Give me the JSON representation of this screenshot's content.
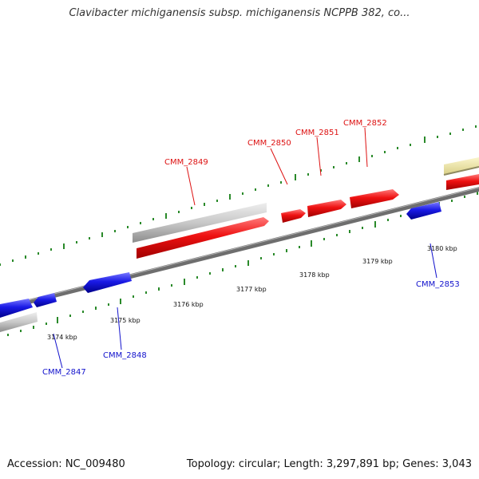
{
  "title": "Clavibacter michiganensis subsp. michiganensis NCPPB 382, co...",
  "footer": {
    "accession": "Accession: NC_009480",
    "summary": "Topology: circular; Length: 3,297,891 bp; Genes: 3,043"
  },
  "colors": {
    "forward_gene": "#ee1111",
    "reverse_gene": "#1a1ae6",
    "forward_rna_track": "#c8c8c8",
    "reverse_rna_track": "#c8c8c8",
    "other_feature": "#ece4a0",
    "backbone": "#808080",
    "ticks": "#2a8a2a",
    "forward_label": "#dd1111",
    "reverse_label": "#1111cc"
  },
  "scale_labels": [
    "3174 kbp",
    "3175 kbp",
    "3176 kbp",
    "3177 kbp",
    "3178 kbp",
    "3179 kbp",
    "3180 kbp"
  ],
  "gene_labels": {
    "forward": [
      "CMM_2849",
      "CMM_2850",
      "CMM_2851",
      "CMM_2852"
    ],
    "reverse": [
      "CMM_2847",
      "CMM_2848",
      "CMM_2853"
    ]
  }
}
